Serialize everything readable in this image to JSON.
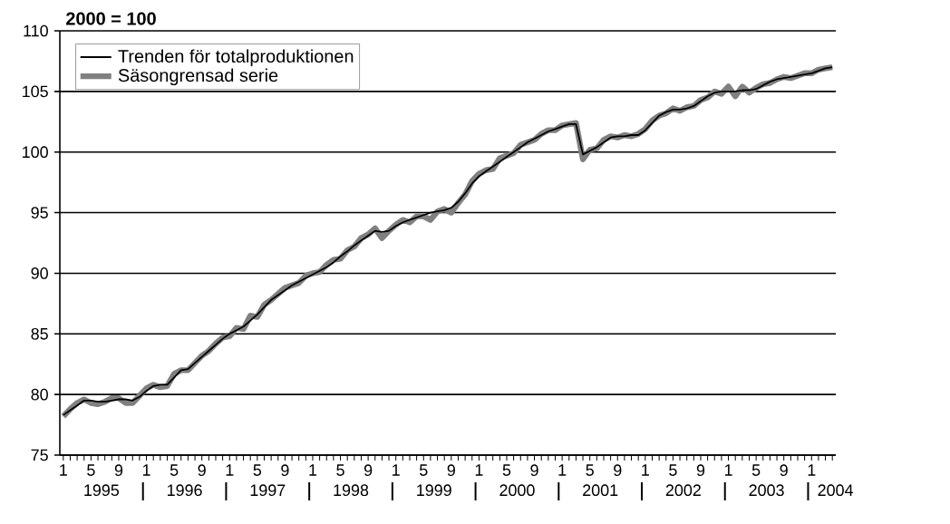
{
  "chart_data": {
    "type": "line",
    "ylabel": "2000 = 100",
    "categories": [
      "1",
      null,
      null,
      null,
      "5",
      null,
      null,
      null,
      "9",
      null,
      null,
      null,
      "1",
      null,
      null,
      null,
      "5",
      null,
      null,
      null,
      "9",
      null,
      null,
      null,
      "1",
      null,
      null,
      null,
      "5",
      null,
      null,
      null,
      "9",
      null,
      null,
      null,
      "1",
      null,
      null,
      null,
      "5",
      null,
      null,
      null,
      "9",
      null,
      null,
      null,
      "1",
      null,
      null,
      null,
      "5",
      null,
      null,
      null,
      "9",
      null,
      null,
      null,
      "1",
      null,
      null,
      null,
      "5",
      null,
      null,
      null,
      "9",
      null,
      null,
      null,
      "1",
      null,
      null,
      null,
      "5",
      null,
      null,
      null,
      "9",
      null,
      null,
      null,
      "1",
      null,
      null,
      null,
      "5",
      null,
      null,
      null,
      "9",
      null,
      null,
      null,
      "1",
      null,
      null,
      null,
      "5",
      null,
      null,
      null,
      "9",
      null,
      null,
      null,
      "1",
      null,
      null,
      null
    ],
    "series": [
      {
        "name": "Trenden för totalproduktionen",
        "color": "#000000",
        "values": [
          78.3,
          78.7,
          79.1,
          79.5,
          79.5,
          79.4,
          79.4,
          79.5,
          79.6,
          79.6,
          79.5,
          79.8,
          80.3,
          80.7,
          80.8,
          80.8,
          81.4,
          82.0,
          82.1,
          82.6,
          83.1,
          83.6,
          84.1,
          84.6,
          85.0,
          85.3,
          85.6,
          86.1,
          86.6,
          87.2,
          87.8,
          88.2,
          88.6,
          89.0,
          89.3,
          89.6,
          89.9,
          90.2,
          90.5,
          90.9,
          91.4,
          91.8,
          92.3,
          92.7,
          93.1,
          93.5,
          93.4,
          93.5,
          93.9,
          94.2,
          94.4,
          94.6,
          94.8,
          95.0,
          95.1,
          95.2,
          95.4,
          95.9,
          96.6,
          97.4,
          98.0,
          98.4,
          98.8,
          99.2,
          99.6,
          100.0,
          100.4,
          100.8,
          101.1,
          101.4,
          101.7,
          101.9,
          102.1,
          102.3,
          102.3,
          99.8,
          100.1,
          100.4,
          100.8,
          101.2,
          101.3,
          101.3,
          101.4,
          101.4,
          101.8,
          102.4,
          103.0,
          103.3,
          103.5,
          103.5,
          103.6,
          103.8,
          104.2,
          104.6,
          104.9,
          105.0,
          105.0,
          105.0,
          105.1,
          105.1,
          105.2,
          105.5,
          105.8,
          106.0,
          106.1,
          106.2,
          106.3,
          106.4,
          106.5,
          106.7,
          106.9,
          107.0
        ]
      },
      {
        "name": "Säsongrensad serie",
        "color": "#808080",
        "values": [
          78.2,
          78.8,
          79.3,
          79.6,
          79.3,
          79.2,
          79.4,
          79.7,
          79.7,
          79.3,
          79.3,
          79.9,
          80.5,
          80.8,
          80.6,
          80.7,
          81.7,
          82.0,
          82.0,
          82.6,
          83.2,
          83.6,
          84.2,
          84.7,
          84.8,
          85.5,
          85.4,
          86.5,
          86.4,
          87.4,
          87.8,
          88.3,
          88.8,
          89.0,
          89.2,
          89.8,
          90.0,
          90.1,
          90.7,
          91.1,
          91.2,
          91.9,
          92.2,
          92.9,
          93.2,
          93.7,
          92.9,
          93.5,
          94.0,
          94.4,
          94.2,
          94.7,
          94.7,
          94.4,
          95.1,
          95.3,
          95.0,
          95.8,
          96.5,
          97.6,
          98.2,
          98.5,
          98.6,
          99.5,
          99.7,
          99.9,
          100.6,
          100.8,
          101.0,
          101.5,
          101.8,
          101.8,
          102.2,
          102.3,
          102.4,
          99.4,
          100.2,
          100.3,
          101.0,
          101.3,
          101.2,
          101.4,
          101.3,
          101.5,
          101.9,
          102.6,
          103.0,
          103.2,
          103.6,
          103.4,
          103.7,
          103.8,
          104.3,
          104.5,
          105.0,
          104.8,
          105.4,
          104.6,
          105.4,
          104.9,
          105.3,
          105.6,
          105.7,
          106.0,
          106.2,
          106.1,
          106.3,
          106.5,
          106.5,
          106.8,
          106.9,
          107.0
        ]
      }
    ],
    "ylim": [
      75,
      110
    ],
    "yticks": [
      75,
      80,
      85,
      90,
      95,
      100,
      105,
      110
    ],
    "grid": "y",
    "legend": "top left",
    "marker": "none",
    "line_style": "solid",
    "annotations": [
      "1995",
      "1996",
      "1997",
      "1998",
      "1999",
      "2000",
      "2001",
      "2002",
      "2003",
      "2004"
    ]
  }
}
